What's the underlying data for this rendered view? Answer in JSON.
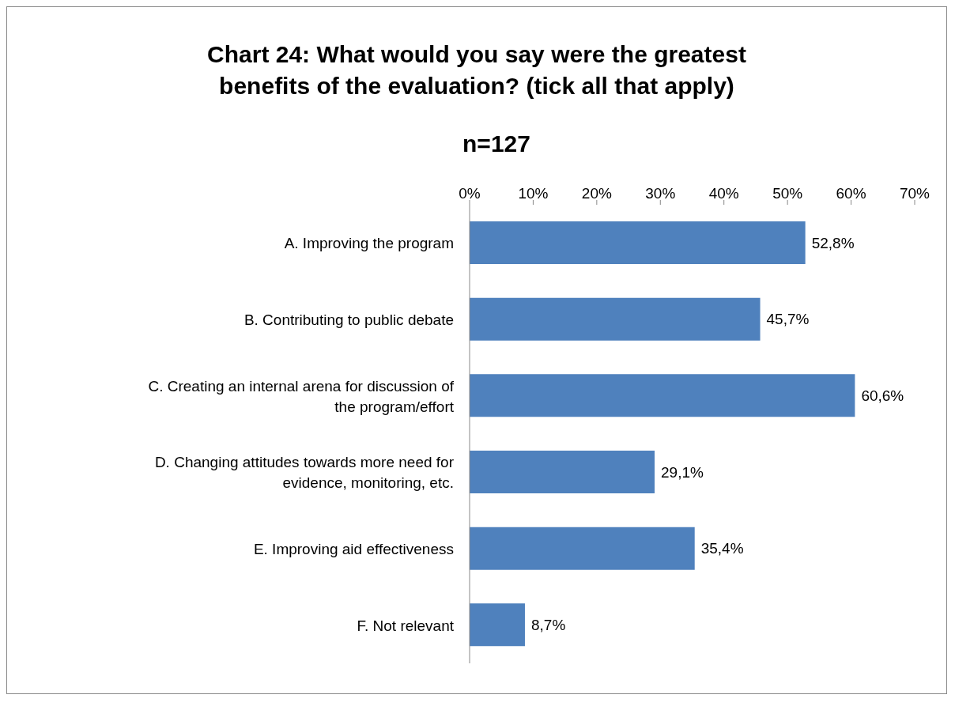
{
  "chart_data": {
    "type": "bar",
    "orientation": "horizontal",
    "title": "Chart 24: What would you say were the greatest benefits of the evaluation? (tick all that apply)",
    "subtitle": "n=127",
    "categories": [
      "A. Improving the program",
      "B. Contributing to public debate",
      "C. Creating an internal arena for discussion of the program/effort",
      "D. Changing attitudes towards more need for evidence, monitoring, etc.",
      "E. Improving aid effectiveness",
      "F. Not relevant"
    ],
    "values": [
      52.8,
      45.7,
      60.6,
      29.1,
      35.4,
      8.7
    ],
    "value_labels": [
      "52,8%",
      "45,7%",
      "60,6%",
      "29,1%",
      "35,4%",
      "8,7%"
    ],
    "color": "#4f81bd",
    "xlim": [
      0,
      70
    ],
    "xticks": [
      {
        "value": 0,
        "label": "0%"
      },
      {
        "value": 10,
        "label": "10%"
      },
      {
        "value": 20,
        "label": "20%"
      },
      {
        "value": 30,
        "label": "30%"
      },
      {
        "value": 40,
        "label": "40%"
      },
      {
        "value": 50,
        "label": "50%"
      },
      {
        "value": 60,
        "label": "60%"
      },
      {
        "value": 70,
        "label": "70%"
      }
    ],
    "grid": false,
    "legend": false
  }
}
